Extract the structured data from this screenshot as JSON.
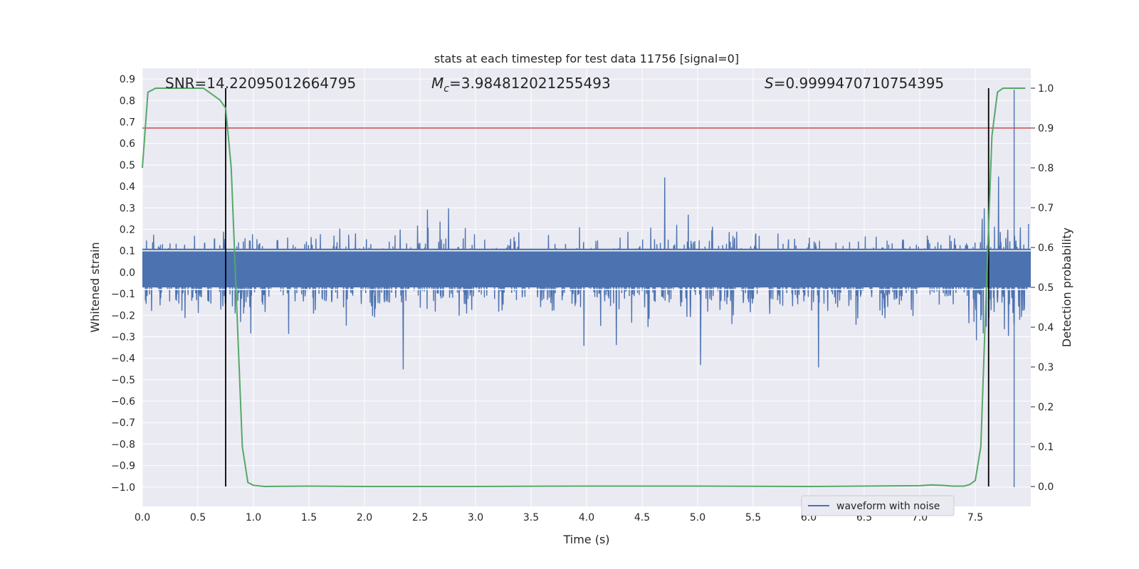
{
  "chart_data": {
    "type": "line",
    "title": "stats at each timestep for test data 11756 [signal=0]",
    "xlabel": "Time (s)",
    "ylabel": "Whitened strain",
    "y2label": "Detection probability",
    "xlim": [
      0.0,
      8.0
    ],
    "ylim": [
      -1.09,
      0.95
    ],
    "y2lim": [
      -0.05,
      1.05
    ],
    "xticks": [
      "0.0",
      "0.5",
      "1.0",
      "1.5",
      "2.0",
      "2.5",
      "3.0",
      "3.5",
      "4.0",
      "4.5",
      "5.0",
      "5.5",
      "6.0",
      "6.5",
      "7.0",
      "7.5"
    ],
    "yticks": [
      "0.9",
      "0.8",
      "0.7",
      "0.6",
      "0.5",
      "0.4",
      "0.3",
      "0.2",
      "0.1",
      "0.0",
      "−0.1",
      "−0.2",
      "−0.3",
      "−0.4",
      "−0.5",
      "−0.6",
      "−0.7",
      "−0.8",
      "−0.9",
      "−1.0"
    ],
    "y2ticks": [
      "1.0",
      "0.9",
      "0.8",
      "0.7",
      "0.6",
      "0.5",
      "0.4",
      "0.3",
      "0.2",
      "0.1",
      "0.0"
    ],
    "grid": true,
    "legend_position": "lower-right",
    "annotations": {
      "snr": "SNR=14.22095012664795",
      "mc_symbol": "M",
      "mc_sub": "c",
      "mc_value": "=3.984812021255493",
      "s_symbol": "S",
      "s_value": "=0.9999470710754395"
    },
    "series": [
      {
        "name": "waveform with noise",
        "color": "#4c72b0",
        "description": "whitened strain noise, amplitude roughly ±0.3 with spikes up to ±0.45, spikes to 0.85 and -1.0 near 7.85 s"
      },
      {
        "color": "#55a868",
        "axis": "right",
        "x": [
          0.0,
          0.05,
          0.12,
          0.2,
          0.3,
          0.4,
          0.5,
          0.55,
          0.6,
          0.65,
          0.7,
          0.75,
          0.8,
          0.85,
          0.9,
          0.95,
          1.0,
          1.1,
          1.5,
          2.0,
          3.0,
          4.0,
          5.0,
          6.0,
          7.0,
          7.1,
          7.2,
          7.3,
          7.4,
          7.45,
          7.5,
          7.55,
          7.6,
          7.65,
          7.7,
          7.75,
          7.8,
          7.9,
          7.95
        ],
        "values": [
          0.8,
          0.99,
          1.0,
          1.0,
          1.0,
          1.0,
          1.0,
          1.0,
          0.99,
          0.98,
          0.97,
          0.95,
          0.8,
          0.45,
          0.1,
          0.01,
          0.003,
          0.0,
          0.001,
          0.0,
          0.0,
          0.001,
          0.001,
          0.0,
          0.002,
          0.004,
          0.003,
          0.001,
          0.001,
          0.005,
          0.015,
          0.1,
          0.5,
          0.88,
          0.99,
          1.0,
          1.0,
          1.0,
          1.0
        ]
      }
    ],
    "threshold_line": {
      "value": 0.9,
      "axis": "right",
      "color": "#c44e52"
    },
    "vertical_lines": [
      0.75,
      7.62
    ],
    "vertical_line_range": [
      0.0,
      1.0
    ],
    "colors": {
      "background": "#eaeaf2",
      "grid": "#ffffff",
      "noise": "#4c72b0",
      "prob": "#55a868",
      "threshold": "#c44e52",
      "vline": "#000000"
    }
  }
}
